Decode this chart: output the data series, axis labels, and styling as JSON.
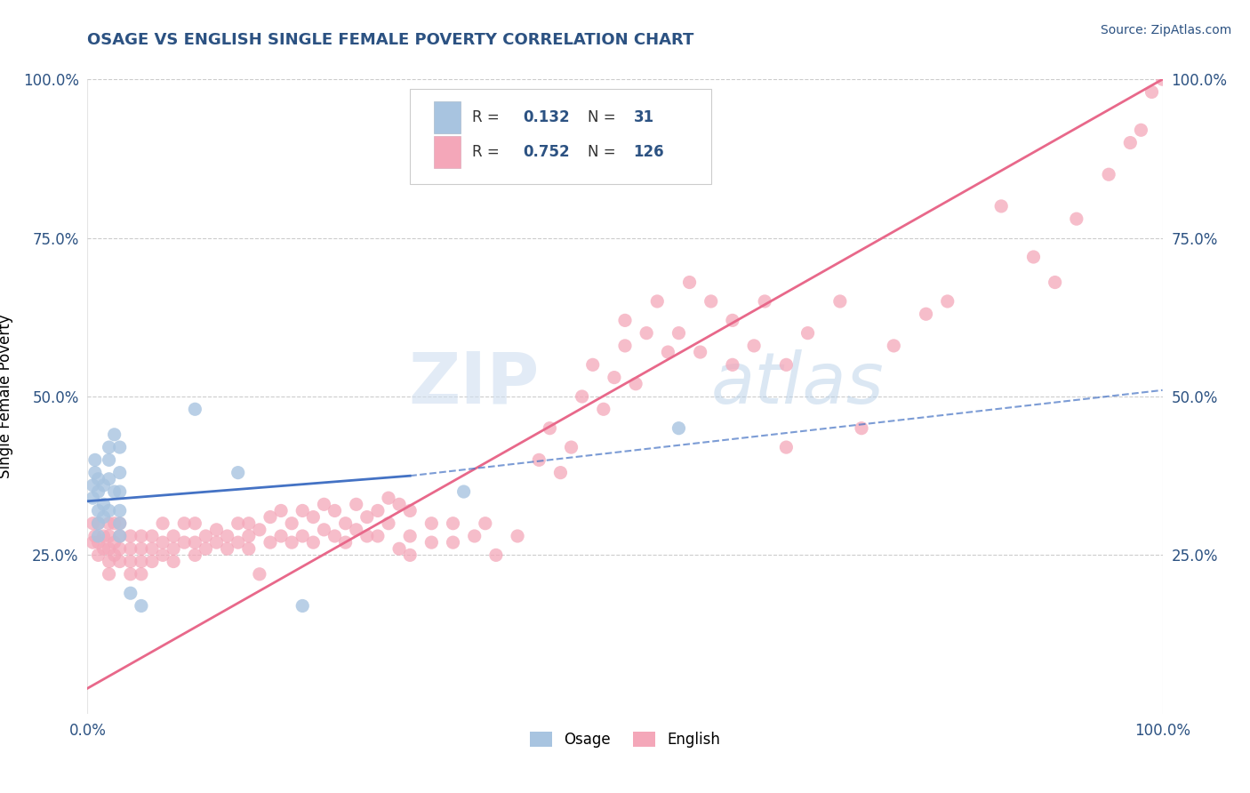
{
  "title": "OSAGE VS ENGLISH SINGLE FEMALE POVERTY CORRELATION CHART",
  "source_text": "Source: ZipAtlas.com",
  "ylabel": "Single Female Poverty",
  "x_tick_labels": [
    "0.0%",
    "100.0%"
  ],
  "y_tick_labels": [
    "25.0%",
    "50.0%",
    "75.0%",
    "100.0%"
  ],
  "x_min": 0.0,
  "x_max": 1.0,
  "y_min": 0.0,
  "y_max": 1.0,
  "osage_color": "#a8c4e0",
  "english_color": "#f4a7b9",
  "osage_r": 0.132,
  "osage_n": 31,
  "english_r": 0.752,
  "english_n": 126,
  "legend_labels": [
    "Osage",
    "English"
  ],
  "watermark_zip": "ZIP",
  "watermark_atlas": "atlas",
  "title_color": "#2c5282",
  "axis_label_color": "#2c5282",
  "grid_color": "#cccccc",
  "osage_scatter": [
    [
      0.005,
      0.34
    ],
    [
      0.005,
      0.36
    ],
    [
      0.007,
      0.38
    ],
    [
      0.007,
      0.4
    ],
    [
      0.01,
      0.35
    ],
    [
      0.01,
      0.37
    ],
    [
      0.01,
      0.32
    ],
    [
      0.01,
      0.3
    ],
    [
      0.01,
      0.28
    ],
    [
      0.015,
      0.36
    ],
    [
      0.015,
      0.33
    ],
    [
      0.015,
      0.31
    ],
    [
      0.02,
      0.4
    ],
    [
      0.02,
      0.42
    ],
    [
      0.02,
      0.37
    ],
    [
      0.02,
      0.32
    ],
    [
      0.025,
      0.44
    ],
    [
      0.025,
      0.35
    ],
    [
      0.03,
      0.42
    ],
    [
      0.03,
      0.38
    ],
    [
      0.03,
      0.35
    ],
    [
      0.03,
      0.32
    ],
    [
      0.03,
      0.3
    ],
    [
      0.03,
      0.28
    ],
    [
      0.04,
      0.19
    ],
    [
      0.05,
      0.17
    ],
    [
      0.1,
      0.48
    ],
    [
      0.14,
      0.38
    ],
    [
      0.2,
      0.17
    ],
    [
      0.35,
      0.35
    ],
    [
      0.55,
      0.45
    ]
  ],
  "english_scatter": [
    [
      0.005,
      0.3
    ],
    [
      0.005,
      0.27
    ],
    [
      0.007,
      0.28
    ],
    [
      0.01,
      0.3
    ],
    [
      0.01,
      0.27
    ],
    [
      0.01,
      0.25
    ],
    [
      0.015,
      0.28
    ],
    [
      0.015,
      0.26
    ],
    [
      0.02,
      0.3
    ],
    [
      0.02,
      0.28
    ],
    [
      0.02,
      0.26
    ],
    [
      0.02,
      0.24
    ],
    [
      0.02,
      0.22
    ],
    [
      0.025,
      0.3
    ],
    [
      0.025,
      0.27
    ],
    [
      0.025,
      0.25
    ],
    [
      0.03,
      0.3
    ],
    [
      0.03,
      0.28
    ],
    [
      0.03,
      0.26
    ],
    [
      0.03,
      0.24
    ],
    [
      0.04,
      0.28
    ],
    [
      0.04,
      0.26
    ],
    [
      0.04,
      0.24
    ],
    [
      0.04,
      0.22
    ],
    [
      0.05,
      0.28
    ],
    [
      0.05,
      0.26
    ],
    [
      0.05,
      0.24
    ],
    [
      0.05,
      0.22
    ],
    [
      0.06,
      0.28
    ],
    [
      0.06,
      0.26
    ],
    [
      0.06,
      0.24
    ],
    [
      0.07,
      0.3
    ],
    [
      0.07,
      0.27
    ],
    [
      0.07,
      0.25
    ],
    [
      0.08,
      0.28
    ],
    [
      0.08,
      0.26
    ],
    [
      0.08,
      0.24
    ],
    [
      0.09,
      0.3
    ],
    [
      0.09,
      0.27
    ],
    [
      0.1,
      0.3
    ],
    [
      0.1,
      0.27
    ],
    [
      0.1,
      0.25
    ],
    [
      0.11,
      0.28
    ],
    [
      0.11,
      0.26
    ],
    [
      0.12,
      0.29
    ],
    [
      0.12,
      0.27
    ],
    [
      0.13,
      0.28
    ],
    [
      0.13,
      0.26
    ],
    [
      0.14,
      0.3
    ],
    [
      0.14,
      0.27
    ],
    [
      0.15,
      0.3
    ],
    [
      0.15,
      0.28
    ],
    [
      0.15,
      0.26
    ],
    [
      0.16,
      0.29
    ],
    [
      0.16,
      0.22
    ],
    [
      0.17,
      0.31
    ],
    [
      0.17,
      0.27
    ],
    [
      0.18,
      0.32
    ],
    [
      0.18,
      0.28
    ],
    [
      0.19,
      0.3
    ],
    [
      0.19,
      0.27
    ],
    [
      0.2,
      0.32
    ],
    [
      0.2,
      0.28
    ],
    [
      0.21,
      0.31
    ],
    [
      0.21,
      0.27
    ],
    [
      0.22,
      0.33
    ],
    [
      0.22,
      0.29
    ],
    [
      0.23,
      0.32
    ],
    [
      0.23,
      0.28
    ],
    [
      0.24,
      0.3
    ],
    [
      0.24,
      0.27
    ],
    [
      0.25,
      0.33
    ],
    [
      0.25,
      0.29
    ],
    [
      0.26,
      0.31
    ],
    [
      0.26,
      0.28
    ],
    [
      0.27,
      0.32
    ],
    [
      0.27,
      0.28
    ],
    [
      0.28,
      0.34
    ],
    [
      0.28,
      0.3
    ],
    [
      0.29,
      0.33
    ],
    [
      0.29,
      0.26
    ],
    [
      0.3,
      0.32
    ],
    [
      0.3,
      0.28
    ],
    [
      0.3,
      0.25
    ],
    [
      0.32,
      0.3
    ],
    [
      0.32,
      0.27
    ],
    [
      0.34,
      0.3
    ],
    [
      0.34,
      0.27
    ],
    [
      0.36,
      0.28
    ],
    [
      0.37,
      0.3
    ],
    [
      0.38,
      0.25
    ],
    [
      0.4,
      0.28
    ],
    [
      0.42,
      0.4
    ],
    [
      0.43,
      0.45
    ],
    [
      0.44,
      0.38
    ],
    [
      0.45,
      0.42
    ],
    [
      0.46,
      0.5
    ],
    [
      0.47,
      0.55
    ],
    [
      0.48,
      0.48
    ],
    [
      0.49,
      0.53
    ],
    [
      0.5,
      0.58
    ],
    [
      0.5,
      0.62
    ],
    [
      0.51,
      0.52
    ],
    [
      0.52,
      0.6
    ],
    [
      0.53,
      0.65
    ],
    [
      0.54,
      0.57
    ],
    [
      0.55,
      0.6
    ],
    [
      0.56,
      0.68
    ],
    [
      0.57,
      0.57
    ],
    [
      0.58,
      0.65
    ],
    [
      0.6,
      0.55
    ],
    [
      0.6,
      0.62
    ],
    [
      0.62,
      0.58
    ],
    [
      0.63,
      0.65
    ],
    [
      0.65,
      0.55
    ],
    [
      0.65,
      0.42
    ],
    [
      0.67,
      0.6
    ],
    [
      0.7,
      0.65
    ],
    [
      0.72,
      0.45
    ],
    [
      0.75,
      0.58
    ],
    [
      0.78,
      0.63
    ],
    [
      0.8,
      0.65
    ],
    [
      0.85,
      0.8
    ],
    [
      0.88,
      0.72
    ],
    [
      0.9,
      0.68
    ],
    [
      0.92,
      0.78
    ],
    [
      0.95,
      0.85
    ],
    [
      0.97,
      0.9
    ],
    [
      0.98,
      0.92
    ],
    [
      0.99,
      0.98
    ],
    [
      1.0,
      1.0
    ]
  ],
  "osage_line_color": "#4472c4",
  "english_line_color": "#e8688a",
  "osage_line_solid": [
    [
      0.0,
      0.335
    ],
    [
      0.3,
      0.375
    ]
  ],
  "osage_line_dashed": [
    [
      0.3,
      0.375
    ],
    [
      1.0,
      0.51
    ]
  ],
  "english_line": [
    [
      0.0,
      0.04
    ],
    [
      1.0,
      1.0
    ]
  ]
}
